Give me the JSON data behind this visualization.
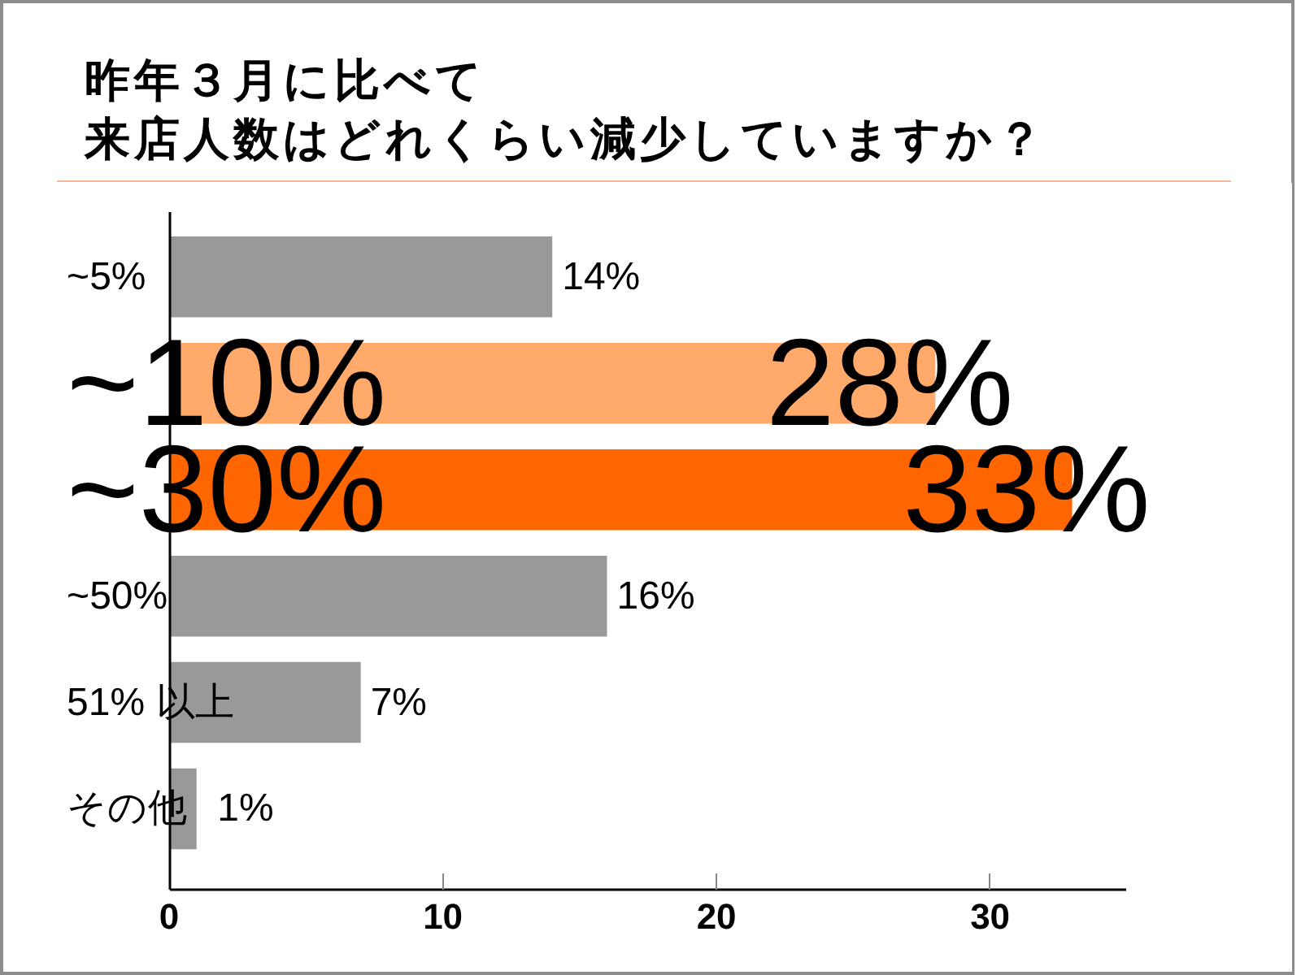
{
  "chart_data": {
    "type": "bar",
    "orientation": "horizontal",
    "title": "昨年３月に比べて",
    "subtitle": "来店人数はどれくらい減少していますか？",
    "categories": [
      "~5%",
      "~10%",
      "~30%",
      "~50%",
      "51% 以上",
      "その他"
    ],
    "values": [
      14,
      28,
      33,
      16,
      7,
      1
    ],
    "colors": [
      "#999999",
      "#ffaa6b",
      "#ff6600",
      "#999999",
      "#999999",
      "#999999"
    ],
    "value_labels": [
      "14%",
      "28%",
      "33%",
      "16%",
      "7%",
      "1%"
    ],
    "xlim": [
      0,
      35
    ],
    "xticks": [
      0,
      10,
      20,
      30
    ],
    "grid": false
  }
}
